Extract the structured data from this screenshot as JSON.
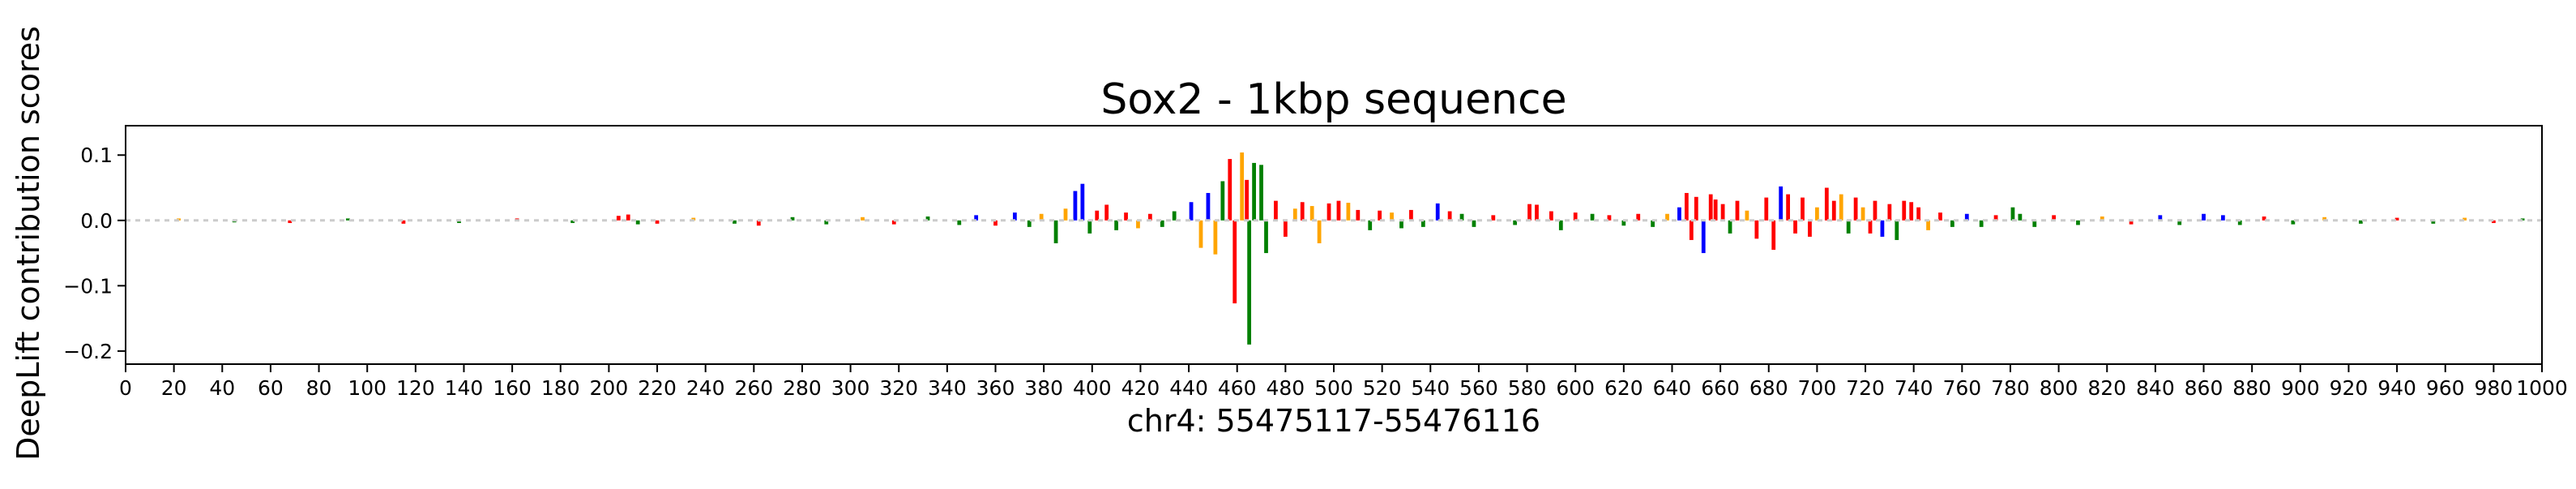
{
  "chart_data": {
    "type": "bar",
    "title": "Sox2 - 1kbp sequence",
    "xlabel": "chr4: 55475117-55476116",
    "ylabel": "DeepLift contribution scores",
    "xlim": [
      0,
      1000
    ],
    "ylim": [
      -0.22,
      0.145
    ],
    "x_ticks": [
      0,
      20,
      40,
      60,
      80,
      100,
      120,
      140,
      160,
      180,
      200,
      220,
      240,
      260,
      280,
      300,
      320,
      340,
      360,
      380,
      400,
      420,
      440,
      460,
      480,
      500,
      520,
      540,
      560,
      580,
      600,
      620,
      640,
      660,
      680,
      700,
      720,
      740,
      760,
      780,
      800,
      820,
      840,
      860,
      880,
      900,
      920,
      940,
      960,
      980,
      1000
    ],
    "x_tick_labels": [
      "0",
      "20",
      "40",
      "60",
      "80",
      "100",
      "120",
      "140",
      "160",
      "180",
      "200",
      "220",
      "240",
      "260",
      "280",
      "300",
      "320",
      "340",
      "360",
      "380",
      "400",
      "420",
      "440",
      "460",
      "480",
      "500",
      "520",
      "540",
      "560",
      "580",
      "600",
      "620",
      "640",
      "660",
      "680",
      "700",
      "720",
      "740",
      "760",
      "780",
      "800",
      "820",
      "840",
      "860",
      "880",
      "900",
      "920",
      "940",
      "960",
      "980",
      "1000"
    ],
    "y_ticks": [
      0.1,
      0.0,
      -0.1,
      -0.2
    ],
    "y_tick_labels": [
      "0.1",
      "0.0",
      "−0.1",
      "−0.2"
    ],
    "grid": false,
    "colors": {
      "A": "#008000",
      "C": "#0000ff",
      "G": "#ffa500",
      "T": "#ff0000"
    },
    "positions": [
      {
        "x": 385,
        "v": -0.035,
        "c": "A"
      },
      {
        "x": 389,
        "v": 0.018,
        "c": "G"
      },
      {
        "x": 393,
        "v": 0.045,
        "c": "C"
      },
      {
        "x": 396,
        "v": 0.056,
        "c": "C"
      },
      {
        "x": 399,
        "v": -0.02,
        "c": "A"
      },
      {
        "x": 402,
        "v": 0.015,
        "c": "T"
      },
      {
        "x": 406,
        "v": 0.024,
        "c": "T"
      },
      {
        "x": 410,
        "v": -0.015,
        "c": "A"
      },
      {
        "x": 414,
        "v": 0.012,
        "c": "T"
      },
      {
        "x": 419,
        "v": -0.012,
        "c": "G"
      },
      {
        "x": 424,
        "v": 0.01,
        "c": "T"
      },
      {
        "x": 429,
        "v": -0.01,
        "c": "A"
      },
      {
        "x": 434,
        "v": 0.014,
        "c": "A"
      },
      {
        "x": 441,
        "v": 0.028,
        "c": "C"
      },
      {
        "x": 445,
        "v": -0.042,
        "c": "G"
      },
      {
        "x": 448,
        "v": 0.042,
        "c": "C"
      },
      {
        "x": 451,
        "v": -0.052,
        "c": "G"
      },
      {
        "x": 454,
        "v": 0.06,
        "c": "A"
      },
      {
        "x": 457,
        "v": 0.094,
        "c": "T"
      },
      {
        "x": 459,
        "v": -0.127,
        "c": "T"
      },
      {
        "x": 462,
        "v": 0.104,
        "c": "G"
      },
      {
        "x": 464,
        "v": 0.062,
        "c": "T"
      },
      {
        "x": 465,
        "v": -0.19,
        "c": "A"
      },
      {
        "x": 467,
        "v": 0.088,
        "c": "A"
      },
      {
        "x": 470,
        "v": 0.085,
        "c": "A"
      },
      {
        "x": 472,
        "v": -0.05,
        "c": "A"
      },
      {
        "x": 476,
        "v": 0.03,
        "c": "T"
      },
      {
        "x": 480,
        "v": -0.025,
        "c": "T"
      },
      {
        "x": 484,
        "v": 0.018,
        "c": "G"
      },
      {
        "x": 487,
        "v": 0.028,
        "c": "T"
      },
      {
        "x": 491,
        "v": 0.022,
        "c": "G"
      },
      {
        "x": 494,
        "v": -0.035,
        "c": "G"
      },
      {
        "x": 498,
        "v": 0.026,
        "c": "T"
      },
      {
        "x": 502,
        "v": 0.03,
        "c": "T"
      },
      {
        "x": 506,
        "v": 0.027,
        "c": "G"
      },
      {
        "x": 510,
        "v": 0.016,
        "c": "T"
      },
      {
        "x": 515,
        "v": -0.015,
        "c": "A"
      },
      {
        "x": 519,
        "v": 0.015,
        "c": "T"
      },
      {
        "x": 524,
        "v": 0.012,
        "c": "G"
      },
      {
        "x": 528,
        "v": -0.012,
        "c": "A"
      },
      {
        "x": 532,
        "v": 0.016,
        "c": "T"
      },
      {
        "x": 537,
        "v": -0.01,
        "c": "A"
      },
      {
        "x": 543,
        "v": 0.026,
        "c": "C"
      },
      {
        "x": 548,
        "v": 0.014,
        "c": "T"
      },
      {
        "x": 553,
        "v": 0.01,
        "c": "A"
      },
      {
        "x": 558,
        "v": -0.01,
        "c": "A"
      },
      {
        "x": 566,
        "v": 0.008,
        "c": "T"
      },
      {
        "x": 575,
        "v": -0.007,
        "c": "A"
      },
      {
        "x": 581,
        "v": 0.025,
        "c": "T"
      },
      {
        "x": 584,
        "v": 0.024,
        "c": "T"
      },
      {
        "x": 590,
        "v": 0.014,
        "c": "T"
      },
      {
        "x": 594,
        "v": -0.015,
        "c": "A"
      },
      {
        "x": 600,
        "v": 0.012,
        "c": "T"
      },
      {
        "x": 607,
        "v": 0.01,
        "c": "A"
      },
      {
        "x": 614,
        "v": 0.008,
        "c": "T"
      },
      {
        "x": 620,
        "v": -0.008,
        "c": "A"
      },
      {
        "x": 626,
        "v": 0.01,
        "c": "T"
      },
      {
        "x": 632,
        "v": -0.01,
        "c": "A"
      },
      {
        "x": 638,
        "v": 0.01,
        "c": "G"
      },
      {
        "x": 643,
        "v": 0.02,
        "c": "C"
      },
      {
        "x": 646,
        "v": 0.042,
        "c": "T"
      },
      {
        "x": 648,
        "v": -0.03,
        "c": "T"
      },
      {
        "x": 650,
        "v": 0.036,
        "c": "T"
      },
      {
        "x": 653,
        "v": -0.05,
        "c": "C"
      },
      {
        "x": 656,
        "v": 0.04,
        "c": "T"
      },
      {
        "x": 658,
        "v": 0.032,
        "c": "T"
      },
      {
        "x": 661,
        "v": 0.025,
        "c": "T"
      },
      {
        "x": 664,
        "v": -0.02,
        "c": "A"
      },
      {
        "x": 667,
        "v": 0.03,
        "c": "T"
      },
      {
        "x": 671,
        "v": 0.015,
        "c": "G"
      },
      {
        "x": 675,
        "v": -0.028,
        "c": "T"
      },
      {
        "x": 679,
        "v": 0.035,
        "c": "T"
      },
      {
        "x": 682,
        "v": -0.045,
        "c": "T"
      },
      {
        "x": 685,
        "v": 0.052,
        "c": "C"
      },
      {
        "x": 688,
        "v": 0.04,
        "c": "T"
      },
      {
        "x": 691,
        "v": -0.02,
        "c": "T"
      },
      {
        "x": 694,
        "v": 0.035,
        "c": "T"
      },
      {
        "x": 697,
        "v": -0.025,
        "c": "T"
      },
      {
        "x": 700,
        "v": 0.02,
        "c": "G"
      },
      {
        "x": 704,
        "v": 0.05,
        "c": "T"
      },
      {
        "x": 707,
        "v": 0.03,
        "c": "T"
      },
      {
        "x": 710,
        "v": 0.04,
        "c": "G"
      },
      {
        "x": 713,
        "v": -0.02,
        "c": "A"
      },
      {
        "x": 716,
        "v": 0.035,
        "c": "T"
      },
      {
        "x": 719,
        "v": 0.02,
        "c": "G"
      },
      {
        "x": 722,
        "v": -0.02,
        "c": "T"
      },
      {
        "x": 724,
        "v": 0.03,
        "c": "T"
      },
      {
        "x": 727,
        "v": -0.025,
        "c": "C"
      },
      {
        "x": 730,
        "v": 0.025,
        "c": "T"
      },
      {
        "x": 733,
        "v": -0.03,
        "c": "A"
      },
      {
        "x": 736,
        "v": 0.03,
        "c": "T"
      },
      {
        "x": 739,
        "v": 0.028,
        "c": "T"
      },
      {
        "x": 742,
        "v": 0.02,
        "c": "T"
      },
      {
        "x": 746,
        "v": -0.015,
        "c": "G"
      },
      {
        "x": 751,
        "v": 0.012,
        "c": "T"
      },
      {
        "x": 756,
        "v": -0.01,
        "c": "A"
      },
      {
        "x": 762,
        "v": 0.01,
        "c": "C"
      },
      {
        "x": 768,
        "v": -0.01,
        "c": "A"
      },
      {
        "x": 774,
        "v": 0.008,
        "c": "T"
      },
      {
        "x": 781,
        "v": 0.02,
        "c": "A"
      },
      {
        "x": 784,
        "v": 0.01,
        "c": "A"
      },
      {
        "x": 790,
        "v": -0.01,
        "c": "A"
      },
      {
        "x": 798,
        "v": 0.008,
        "c": "T"
      },
      {
        "x": 808,
        "v": -0.007,
        "c": "A"
      },
      {
        "x": 818,
        "v": 0.006,
        "c": "G"
      },
      {
        "x": 830,
        "v": -0.006,
        "c": "T"
      },
      {
        "x": 842,
        "v": 0.008,
        "c": "C"
      },
      {
        "x": 850,
        "v": -0.007,
        "c": "A"
      },
      {
        "x": 860,
        "v": 0.01,
        "c": "C"
      },
      {
        "x": 868,
        "v": 0.008,
        "c": "C"
      },
      {
        "x": 875,
        "v": -0.007,
        "c": "A"
      },
      {
        "x": 885,
        "v": 0.006,
        "c": "T"
      },
      {
        "x": 897,
        "v": -0.006,
        "c": "A"
      },
      {
        "x": 910,
        "v": 0.005,
        "c": "G"
      },
      {
        "x": 925,
        "v": -0.005,
        "c": "A"
      },
      {
        "x": 940,
        "v": 0.004,
        "c": "T"
      },
      {
        "x": 955,
        "v": -0.005,
        "c": "A"
      },
      {
        "x": 968,
        "v": 0.004,
        "c": "G"
      },
      {
        "x": 980,
        "v": -0.004,
        "c": "T"
      },
      {
        "x": 992,
        "v": 0.003,
        "c": "A"
      },
      {
        "x": 22,
        "v": 0.003,
        "c": "G"
      },
      {
        "x": 45,
        "v": -0.003,
        "c": "A"
      },
      {
        "x": 68,
        "v": -0.004,
        "c": "T"
      },
      {
        "x": 92,
        "v": 0.003,
        "c": "A"
      },
      {
        "x": 115,
        "v": -0.005,
        "c": "T"
      },
      {
        "x": 138,
        "v": -0.004,
        "c": "A"
      },
      {
        "x": 162,
        "v": 0.003,
        "c": "T"
      },
      {
        "x": 185,
        "v": -0.004,
        "c": "A"
      },
      {
        "x": 204,
        "v": 0.007,
        "c": "T"
      },
      {
        "x": 208,
        "v": 0.009,
        "c": "T"
      },
      {
        "x": 212,
        "v": -0.006,
        "c": "A"
      },
      {
        "x": 220,
        "v": -0.005,
        "c": "T"
      },
      {
        "x": 235,
        "v": 0.004,
        "c": "G"
      },
      {
        "x": 252,
        "v": -0.005,
        "c": "A"
      },
      {
        "x": 262,
        "v": -0.008,
        "c": "T"
      },
      {
        "x": 276,
        "v": 0.005,
        "c": "A"
      },
      {
        "x": 290,
        "v": -0.006,
        "c": "A"
      },
      {
        "x": 305,
        "v": 0.005,
        "c": "G"
      },
      {
        "x": 318,
        "v": -0.006,
        "c": "T"
      },
      {
        "x": 332,
        "v": 0.006,
        "c": "A"
      },
      {
        "x": 345,
        "v": -0.007,
        "c": "A"
      },
      {
        "x": 352,
        "v": 0.008,
        "c": "C"
      },
      {
        "x": 360,
        "v": -0.008,
        "c": "T"
      },
      {
        "x": 368,
        "v": 0.012,
        "c": "C"
      },
      {
        "x": 374,
        "v": -0.01,
        "c": "A"
      },
      {
        "x": 379,
        "v": 0.01,
        "c": "G"
      }
    ]
  }
}
